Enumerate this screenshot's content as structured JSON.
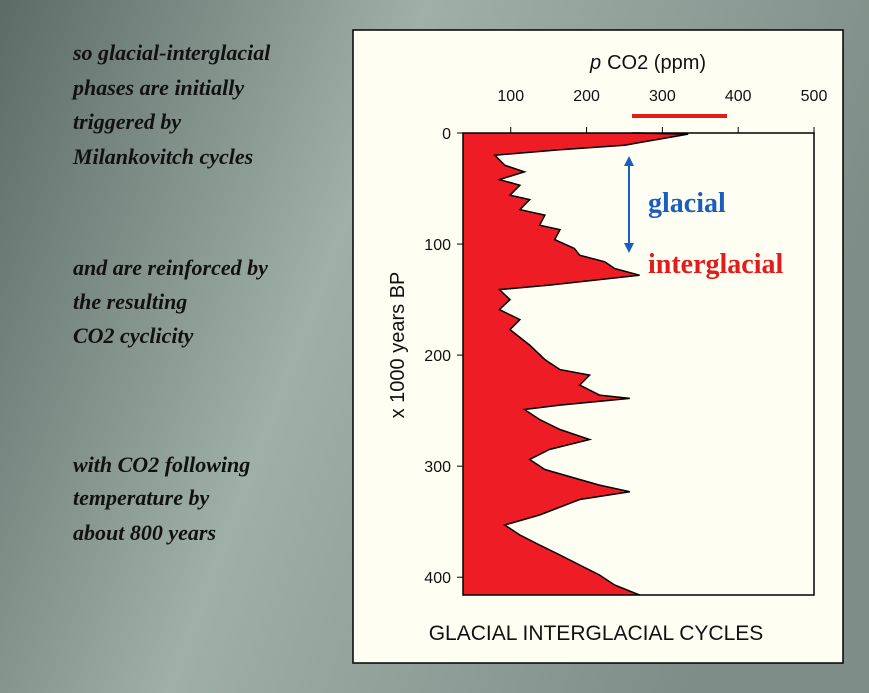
{
  "notes": [
    [
      "so glacial-interglacial",
      "phases are initially",
      "triggered by",
      "Milankovitch cycles"
    ],
    [
      "and are reinforced by",
      "the resulting",
      "CO2 cyclicity"
    ],
    [
      "with CO2 following",
      "temperature by",
      "about 800 years"
    ]
  ],
  "chart_data": {
    "type": "area",
    "xlabel_parts": [
      "p",
      "CO2 (ppm)"
    ],
    "ylabel": "x 1000 years BP",
    "caption": "GLACIAL INTERGLACIAL CYCLES",
    "annotations": [
      "glacial",
      "interglacial"
    ],
    "color": "#ee1c25",
    "xlim": [
      37,
      500
    ],
    "xticks": [
      100,
      200,
      300,
      400,
      500
    ],
    "ylim": [
      0,
      416
    ],
    "yticks": [
      0,
      100,
      200,
      300,
      400
    ],
    "y_inverted": true,
    "x": [
      0,
      1,
      11,
      15,
      20,
      29,
      35,
      42,
      47,
      56,
      60,
      69,
      74,
      83,
      87,
      96,
      104,
      110,
      116,
      122,
      128,
      132,
      137,
      141,
      150,
      159,
      168,
      177,
      191,
      204,
      213,
      218,
      227,
      236,
      239,
      245,
      249,
      258,
      267,
      276,
      285,
      294,
      303,
      312,
      317,
      323,
      330,
      344,
      353,
      362,
      371,
      380,
      389,
      398,
      407,
      416
    ],
    "values": [
      260,
      334,
      250,
      165,
      79,
      92,
      118,
      85,
      112,
      99,
      125,
      112,
      145,
      138,
      165,
      158,
      184,
      191,
      224,
      237,
      270,
      217,
      151,
      85,
      99,
      85,
      112,
      99,
      125,
      145,
      165,
      204,
      191,
      217,
      257,
      165,
      118,
      138,
      165,
      204,
      151,
      125,
      145,
      191,
      217,
      257,
      191,
      138,
      92,
      112,
      138,
      165,
      191,
      217,
      237,
      270
    ]
  }
}
